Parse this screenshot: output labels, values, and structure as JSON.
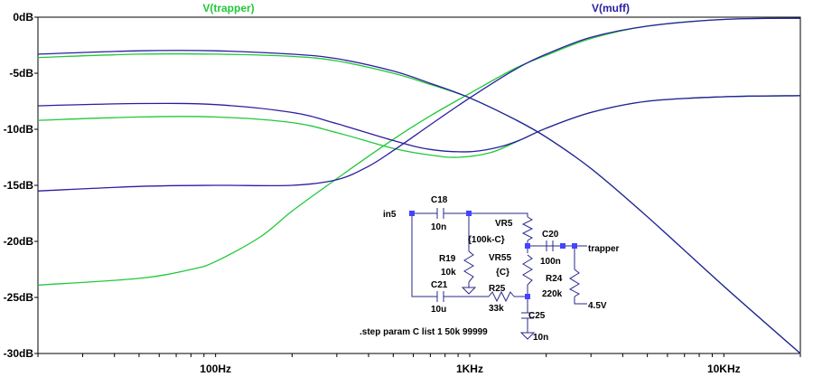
{
  "chart_data": {
    "type": "line",
    "x_scale": "log",
    "xlim": [
      20,
      20000
    ],
    "ylim": [
      -30,
      0
    ],
    "grid": false,
    "y_ticks": [
      {
        "value": 0,
        "label": "0dB"
      },
      {
        "value": -5,
        "label": "-5dB"
      },
      {
        "value": -10,
        "label": "-10dB"
      },
      {
        "value": -15,
        "label": "-15dB"
      },
      {
        "value": -20,
        "label": "-20dB"
      },
      {
        "value": -25,
        "label": "-25dB"
      },
      {
        "value": -30,
        "label": "-30dB"
      }
    ],
    "x_ticks": [
      {
        "value": 100,
        "label": "100Hz"
      },
      {
        "value": 1000,
        "label": "1KHz"
      },
      {
        "value": 10000,
        "label": "10KHz"
      }
    ],
    "legend": [
      {
        "name": "V(trapper)",
        "color": "#22c83a",
        "position": "top-left"
      },
      {
        "name": "V(muff)",
        "color": "#2a1ea0",
        "position": "top-right"
      }
    ],
    "series": [
      {
        "name": "V(trapper)",
        "color": "#22c83a",
        "x": [
          20,
          50,
          100,
          200,
          300,
          500,
          700,
          1000,
          1500,
          2000,
          3000,
          5000,
          10000,
          20000
        ],
        "y": [
          -3.6,
          -3.3,
          -3.3,
          -3.5,
          -3.9,
          -5.0,
          -6.0,
          -7.2,
          -9.1,
          -10.7,
          -13.5,
          -17.8,
          -24.0,
          -30.0
        ]
      },
      {
        "name": "V(trapper)",
        "color": "#22c83a",
        "x": [
          20,
          50,
          100,
          200,
          300,
          500,
          700,
          900,
          1200,
          1500,
          2000,
          3000,
          5000,
          10000,
          20000
        ],
        "y": [
          -9.2,
          -8.9,
          -8.9,
          -9.4,
          -10.3,
          -11.7,
          -12.3,
          -12.5,
          -12.1,
          -11.2,
          -9.9,
          -8.5,
          -7.5,
          -7.1,
          -7.0
        ]
      },
      {
        "name": "V(trapper)",
        "color": "#22c83a",
        "x": [
          20,
          50,
          80,
          100,
          150,
          200,
          300,
          500,
          700,
          1000,
          1500,
          2000,
          3000,
          5000,
          10000,
          20000
        ],
        "y": [
          -23.9,
          -23.3,
          -22.5,
          -21.8,
          -19.6,
          -17.3,
          -14.4,
          -10.9,
          -8.8,
          -6.8,
          -4.6,
          -3.4,
          -1.9,
          -0.8,
          -0.2,
          -0.1
        ]
      },
      {
        "name": "V(muff)",
        "color": "#2a1ea0",
        "x": [
          20,
          50,
          100,
          200,
          300,
          500,
          700,
          1000,
          1500,
          2000,
          3000,
          5000,
          10000,
          20000
        ],
        "y": [
          -3.3,
          -3.0,
          -3.0,
          -3.3,
          -3.7,
          -4.8,
          -5.9,
          -7.2,
          -9.1,
          -10.7,
          -13.5,
          -17.8,
          -24.0,
          -30.0
        ]
      },
      {
        "name": "V(muff)",
        "color": "#2a1ea0",
        "x": [
          20,
          50,
          100,
          200,
          300,
          500,
          700,
          1000,
          1300,
          1600,
          2000,
          3000,
          5000,
          10000,
          20000
        ],
        "y": [
          -7.9,
          -7.7,
          -7.8,
          -8.5,
          -9.5,
          -11.0,
          -11.8,
          -12.0,
          -11.6,
          -10.9,
          -9.9,
          -8.5,
          -7.5,
          -7.1,
          -7.0
        ]
      },
      {
        "name": "V(muff)",
        "color": "#2a1ea0",
        "x": [
          20,
          50,
          100,
          200,
          300,
          400,
          500,
          700,
          1000,
          1500,
          2000,
          3000,
          5000,
          10000,
          20000
        ],
        "y": [
          -15.5,
          -15.1,
          -15.0,
          -15.0,
          -14.5,
          -13.3,
          -11.9,
          -9.6,
          -7.2,
          -4.7,
          -3.3,
          -1.8,
          -0.8,
          -0.2,
          -0.1
        ]
      }
    ]
  },
  "schematic": {
    "labels": {
      "in": "in5",
      "c18": "C18",
      "c18_val": "10n",
      "vr5": "VR5",
      "vr5_val": "{100k-C}",
      "c20": "C20",
      "c20_val": "100n",
      "out": "trapper",
      "r19": "R19",
      "r19_val": "10k",
      "vr55": "VR55",
      "vr55_val": "{C}",
      "r24": "R24",
      "r24_val": "220k",
      "c21": "C21",
      "c21_val": "10u",
      "r25": "R25",
      "r25_val": "33k",
      "supply": "4.5V",
      "c25": "C25",
      "c25_val": "10n",
      "step": ".step param C list 1 50k 99999"
    }
  }
}
